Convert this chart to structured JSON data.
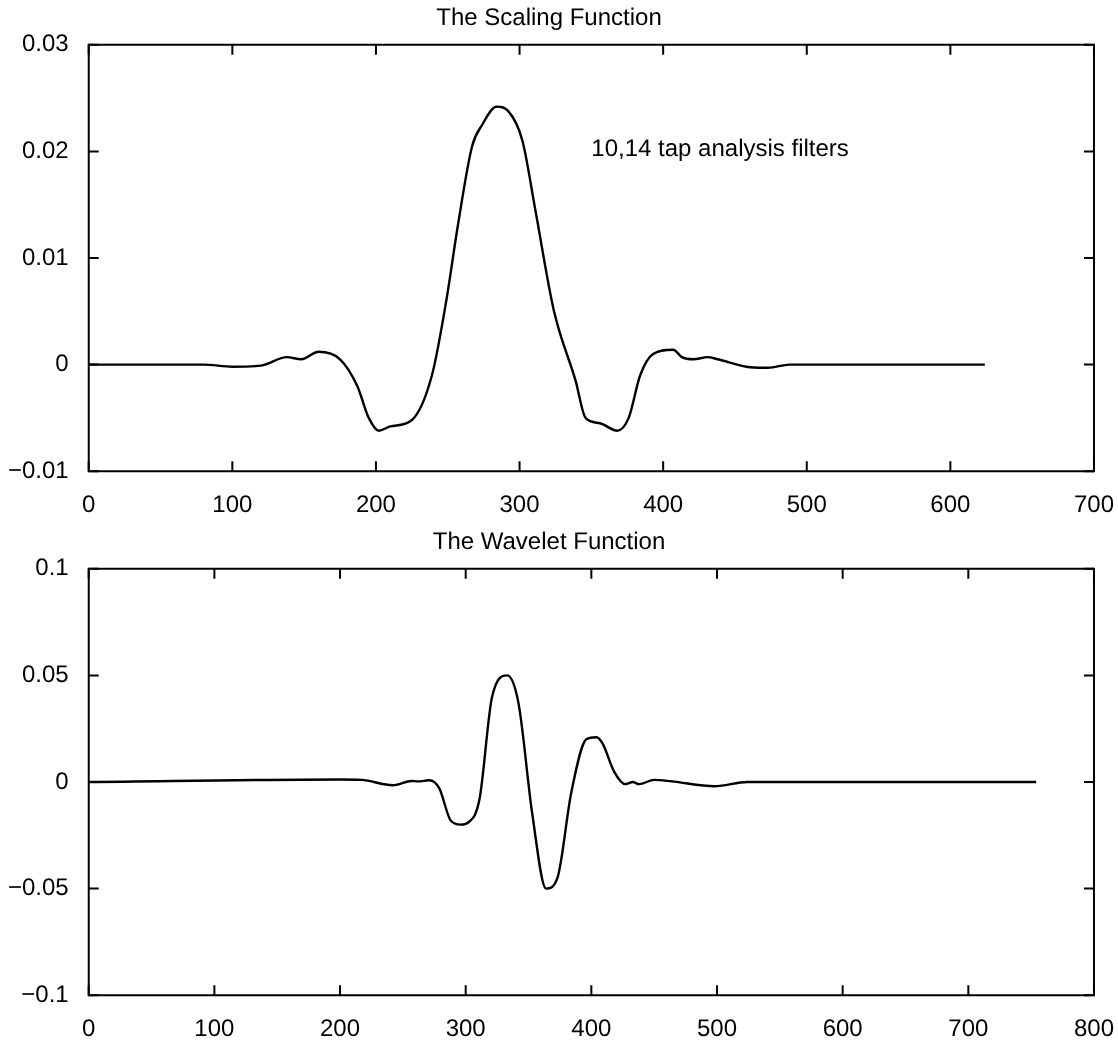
{
  "chart_data": [
    {
      "type": "line",
      "title": "The Scaling Function",
      "color": "#000000",
      "xlim": [
        0,
        700
      ],
      "xticks": [
        0,
        100,
        200,
        300,
        400,
        500,
        600,
        700
      ],
      "ylim": [
        -0.01,
        0.03
      ],
      "yticks": [
        -0.01,
        0,
        0.01,
        0.02,
        0.03
      ],
      "annotations": [
        "10,14 tap analysis filters"
      ],
      "x": [
        0,
        80,
        100,
        120,
        138,
        148,
        160,
        175,
        187,
        195,
        202,
        210,
        225,
        239,
        249,
        257,
        267,
        274,
        284,
        292,
        302,
        311,
        324,
        339,
        346,
        356,
        368,
        376,
        384,
        393,
        407,
        413,
        421,
        431,
        438,
        458,
        473,
        488,
        624
      ],
      "values": [
        0,
        0,
        -0.0002,
        -0.0001,
        0.0007,
        0.0005,
        0.0012,
        0.0005,
        -0.002,
        -0.005,
        -0.0062,
        -0.0058,
        -0.0052,
        -0.001,
        0.006,
        0.013,
        0.0205,
        0.0225,
        0.0242,
        0.0238,
        0.021,
        0.0145,
        0.005,
        -0.0015,
        -0.005,
        -0.0055,
        -0.0062,
        -0.005,
        -0.001,
        0.001,
        0.0014,
        0.0007,
        0.0005,
        0.0007,
        0.0005,
        -0.0002,
        -0.0003,
        0,
        0
      ]
    },
    {
      "type": "line",
      "title": "The Wavelet Function",
      "color": "#000000",
      "xlim": [
        0,
        800
      ],
      "xticks": [
        0,
        100,
        200,
        300,
        400,
        500,
        600,
        700,
        800
      ],
      "ylim": [
        -0.1,
        0.1
      ],
      "yticks": [
        -0.1,
        -0.05,
        0,
        0.05,
        0.1
      ],
      "x": [
        0,
        200,
        217,
        242,
        257,
        262,
        271,
        279,
        288,
        296,
        302,
        311,
        321,
        333,
        342,
        353,
        364,
        373,
        384,
        396,
        404,
        409,
        418,
        427,
        433,
        438,
        450,
        464,
        498,
        524,
        754
      ],
      "values": [
        0,
        0.0012,
        0.001,
        -0.0015,
        0.0005,
        0.0003,
        0.0008,
        -0.003,
        -0.018,
        -0.02,
        -0.019,
        -0.008,
        0.04,
        0.05,
        0.037,
        -0.015,
        -0.05,
        -0.045,
        -0.005,
        0.02,
        0.021,
        0.018,
        0.005,
        -0.001,
        0,
        -0.001,
        0.001,
        0.0003,
        -0.002,
        0,
        0
      ]
    }
  ]
}
